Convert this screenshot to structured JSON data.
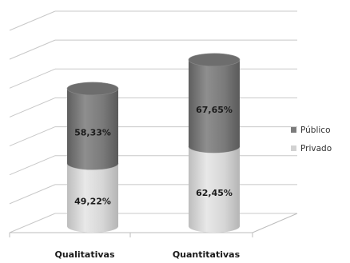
{
  "chart_data": {
    "type": "bar",
    "stacked": true,
    "style": "3d-cylinder",
    "categories": [
      "Qualitativas",
      "Quantitativas"
    ],
    "series": [
      {
        "name": "Privado",
        "color": "#d2d2d2",
        "values": [
          49.22,
          62.45
        ],
        "labels": [
          "49,22%",
          "62,45%"
        ]
      },
      {
        "name": "Público",
        "color": "#7c7c7c",
        "values": [
          58.33,
          67.65
        ],
        "labels": [
          "58,33%",
          "67,65%"
        ]
      }
    ],
    "grid": true,
    "legend_position": "right"
  }
}
